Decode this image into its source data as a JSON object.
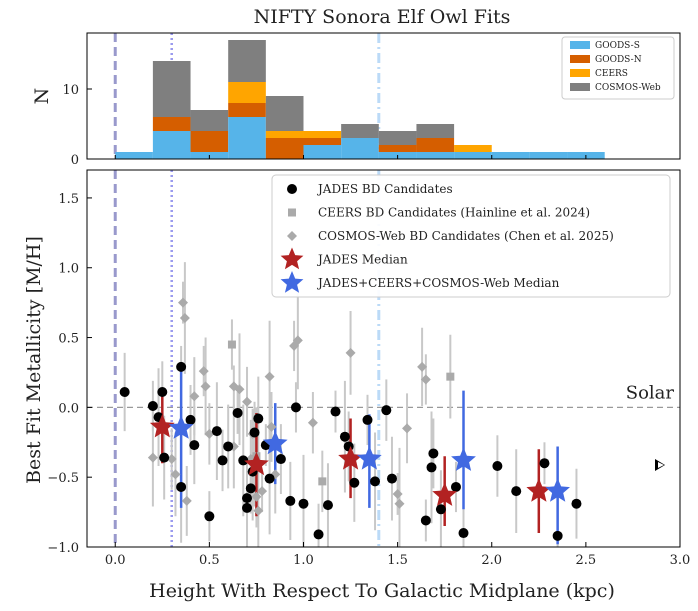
{
  "chart_data": [
    {
      "type": "bar",
      "stacked": true,
      "title": "NIFTY Sonora Elf Owl Fits",
      "ylabel": "N",
      "xlim": [
        -0.15,
        3.0
      ],
      "ylim": [
        0,
        18
      ],
      "yticks": [
        "0",
        "10"
      ],
      "legend_position": "top-right",
      "bins": [
        {
          "x0": 0.0,
          "x1": 0.2
        },
        {
          "x0": 0.2,
          "x1": 0.4
        },
        {
          "x0": 0.4,
          "x1": 0.6
        },
        {
          "x0": 0.6,
          "x1": 0.8
        },
        {
          "x0": 0.8,
          "x1": 1.0
        },
        {
          "x0": 1.0,
          "x1": 1.2
        },
        {
          "x0": 1.2,
          "x1": 1.4
        },
        {
          "x0": 1.4,
          "x1": 1.6
        },
        {
          "x0": 1.6,
          "x1": 1.8
        },
        {
          "x0": 1.8,
          "x1": 2.0
        },
        {
          "x0": 2.0,
          "x1": 2.2
        },
        {
          "x0": 2.2,
          "x1": 2.4
        },
        {
          "x0": 2.4,
          "x1": 2.6
        }
      ],
      "series": [
        {
          "name": "GOODS-S",
          "color": "#56b4e9",
          "values": [
            1,
            4,
            1,
            6,
            0,
            2,
            3,
            1,
            1,
            1,
            1,
            1,
            1
          ]
        },
        {
          "name": "GOODS-N",
          "color": "#d55e00",
          "values": [
            0,
            2,
            3,
            2,
            3,
            1,
            0,
            1,
            2,
            0,
            0,
            0,
            0
          ]
        },
        {
          "name": "CEERS",
          "color": "#ffa500",
          "values": [
            0,
            0,
            0,
            3,
            1,
            1,
            0,
            0,
            0,
            1,
            0,
            0,
            0
          ]
        },
        {
          "name": "COSMOS-Web",
          "color": "#7f7f7f",
          "values": [
            0,
            8,
            3,
            6,
            5,
            0,
            2,
            2,
            2,
            0,
            0,
            0,
            0
          ]
        }
      ]
    },
    {
      "type": "scatter",
      "xlabel": "Height With Respect To Galactic Midplane (kpc)",
      "ylabel": "Best Fit Metallicity [M/H]",
      "xlim": [
        -0.15,
        3.0
      ],
      "ylim": [
        -1.0,
        1.7
      ],
      "xticks": [
        "0.0",
        "0.5",
        "1.0",
        "1.5",
        "2.0",
        "2.5",
        "3.0"
      ],
      "yticks": [
        "−1.0",
        "−0.5",
        "0.0",
        "0.5",
        "1.0",
        "1.5"
      ],
      "solar_label": "Solar",
      "solar_value": 0.0,
      "legend_position": "top-right",
      "vlines": [
        {
          "x": 0.0,
          "style": "dashed",
          "color": "#9999cc"
        },
        {
          "x": 0.3,
          "style": "dotted",
          "color": "#9999ee"
        },
        {
          "x": 1.4,
          "style": "dashdot",
          "color": "#bbdaf7"
        }
      ],
      "series": [
        {
          "name": "JADES BD Candidates",
          "marker": "circle",
          "color": "#000000",
          "points": [
            [
              0.05,
              0.11
            ],
            [
              0.2,
              0.01
            ],
            [
              0.23,
              -0.07
            ],
            [
              0.25,
              0.11
            ],
            [
              0.26,
              -0.36
            ],
            [
              0.35,
              0.29
            ],
            [
              0.35,
              -0.57
            ],
            [
              0.4,
              -0.09
            ],
            [
              0.42,
              -0.27
            ],
            [
              0.5,
              -0.78
            ],
            [
              0.54,
              -0.17
            ],
            [
              0.57,
              -0.38
            ],
            [
              0.6,
              -0.28
            ],
            [
              0.65,
              -0.04
            ],
            [
              0.68,
              -0.38
            ],
            [
              0.7,
              -0.65
            ],
            [
              0.7,
              -0.72
            ],
            [
              0.72,
              -0.58
            ],
            [
              0.73,
              -0.46
            ],
            [
              0.74,
              -0.18
            ],
            [
              0.76,
              -0.08
            ],
            [
              0.8,
              -0.27
            ],
            [
              0.82,
              -0.51
            ],
            [
              0.88,
              -0.37
            ],
            [
              0.93,
              -0.67
            ],
            [
              0.96,
              0.0
            ],
            [
              1.0,
              -0.69
            ],
            [
              1.08,
              -0.91
            ],
            [
              1.13,
              -0.7
            ],
            [
              1.17,
              -0.03
            ],
            [
              1.22,
              -0.21
            ],
            [
              1.24,
              -0.28
            ],
            [
              1.27,
              -0.54
            ],
            [
              1.34,
              -0.09
            ],
            [
              1.38,
              -0.53
            ],
            [
              1.44,
              -0.02
            ],
            [
              1.47,
              -0.51
            ],
            [
              1.65,
              -0.81
            ],
            [
              1.68,
              -0.43
            ],
            [
              1.69,
              -0.33
            ],
            [
              1.73,
              -0.73
            ],
            [
              1.81,
              -0.57
            ],
            [
              1.85,
              -0.9
            ],
            [
              2.03,
              -0.42
            ],
            [
              2.13,
              -0.6
            ],
            [
              2.28,
              -0.4
            ],
            [
              2.35,
              -0.92
            ],
            [
              2.45,
              -0.69
            ]
          ]
        },
        {
          "name": "CEERS BD Candidates (Hainline et al. 2024)",
          "marker": "square",
          "color": "#aaaaaa",
          "points": [
            [
              0.62,
              0.45
            ],
            [
              0.75,
              -0.35
            ],
            [
              1.1,
              -0.53
            ],
            [
              1.78,
              0.22
            ]
          ]
        },
        {
          "name": "COSMOS-Web BD Candidates (Chen et al. 2025)",
          "marker": "diamond",
          "color": "#aaaaaa",
          "points": [
            [
              0.2,
              -0.36
            ],
            [
              0.3,
              -0.37
            ],
            [
              0.32,
              -0.48
            ],
            [
              0.36,
              0.75
            ],
            [
              0.37,
              0.64
            ],
            [
              0.38,
              -0.67
            ],
            [
              0.42,
              0.08
            ],
            [
              0.47,
              0.26
            ],
            [
              0.48,
              0.15
            ],
            [
              0.5,
              -0.19
            ],
            [
              0.63,
              -0.28
            ],
            [
              0.63,
              0.15
            ],
            [
              0.66,
              0.13
            ],
            [
              0.7,
              0.04
            ],
            [
              0.72,
              -0.37
            ],
            [
              0.73,
              -0.19
            ],
            [
              0.74,
              -0.36
            ],
            [
              0.75,
              -0.64
            ],
            [
              0.76,
              -0.74
            ],
            [
              0.78,
              -0.6
            ],
            [
              0.82,
              0.22
            ],
            [
              0.83,
              -0.14
            ],
            [
              0.85,
              -0.48
            ],
            [
              0.95,
              0.44
            ],
            [
              0.97,
              0.48
            ],
            [
              1.05,
              -0.11
            ],
            [
              1.25,
              0.39
            ],
            [
              1.5,
              -0.62
            ],
            [
              1.51,
              -0.69
            ],
            [
              1.55,
              -0.15
            ],
            [
              1.63,
              0.29
            ],
            [
              1.65,
              0.2
            ]
          ]
        },
        {
          "name": "JADES Median",
          "marker": "star",
          "color": "#b22222",
          "points": [
            {
              "x": 0.25,
              "y": -0.14,
              "lo": -0.4,
              "hi": 0.08
            },
            {
              "x": 0.75,
              "y": -0.41,
              "lo": -0.78,
              "hi": -0.04
            },
            {
              "x": 1.25,
              "y": -0.37,
              "lo": -0.65,
              "hi": -0.08
            },
            {
              "x": 1.75,
              "y": -0.63,
              "lo": -0.85,
              "hi": -0.35
            },
            {
              "x": 2.25,
              "y": -0.6,
              "lo": -0.9,
              "hi": -0.3
            }
          ]
        },
        {
          "name": "JADES+CEERS+COSMOS-Web Median",
          "marker": "star",
          "color": "#4169e1",
          "points": [
            {
              "x": 0.35,
              "y": -0.15,
              "lo": -0.72,
              "hi": 0.26
            },
            {
              "x": 0.85,
              "y": -0.26,
              "lo": -0.55,
              "hi": 0.03
            },
            {
              "x": 1.35,
              "y": -0.37,
              "lo": -0.72,
              "hi": -0.05
            },
            {
              "x": 1.85,
              "y": -0.38,
              "lo": -0.73,
              "hi": 0.12
            },
            {
              "x": 2.35,
              "y": -0.6,
              "lo": -0.98,
              "hi": -0.28
            }
          ]
        }
      ]
    }
  ]
}
